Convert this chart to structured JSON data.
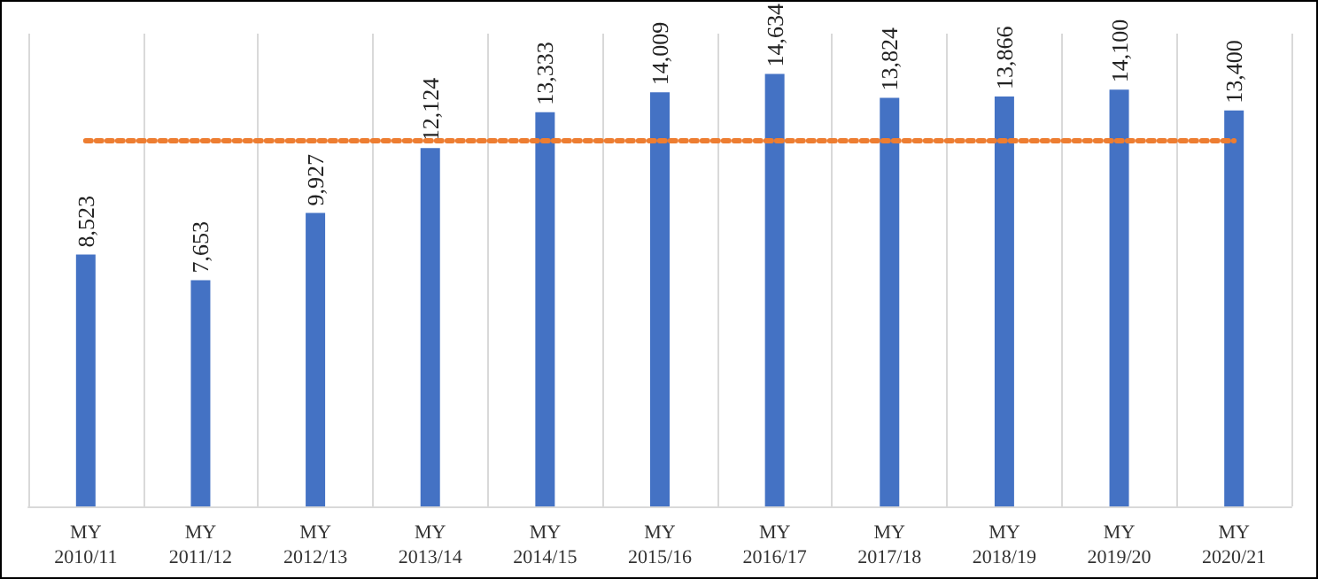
{
  "chart_data": {
    "type": "bar",
    "categories": [
      "MY\n2010/11",
      "MY\n2011/12",
      "MY\n2012/13",
      "MY\n2013/14",
      "MY\n2014/15",
      "MY\n2015/16",
      "MY\n2016/17",
      "MY\n2017/18",
      "MY\n2018/19",
      "MY\n2019/20",
      "MY\n2020/21"
    ],
    "values": [
      8523,
      7653,
      9927,
      12124,
      13333,
      14009,
      14634,
      13824,
      13866,
      14100,
      13400
    ],
    "color": "#4472c4",
    "value_labels": [
      "8,523",
      "7,653",
      "9,927",
      "12,124",
      "13,333",
      "14,009",
      "14,634",
      "13,824",
      "13,866",
      "14,100",
      "13,400"
    ],
    "grid": "x",
    "ref_lines": [
      {
        "axis": "y",
        "value": 12400,
        "color": "#ed7d31",
        "line_style": "dotted"
      }
    ]
  }
}
